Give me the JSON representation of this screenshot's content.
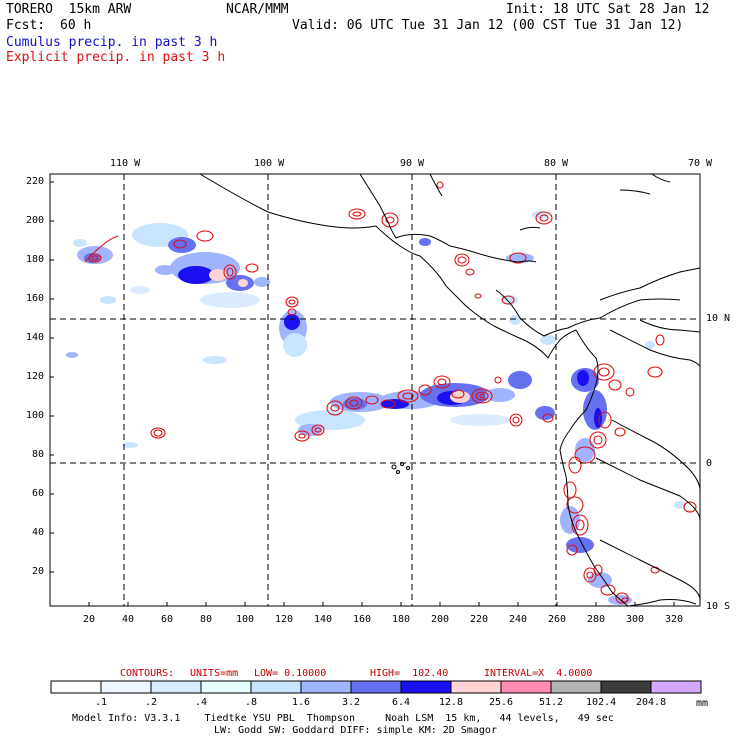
{
  "header": {
    "model": "TORERO  15km ARW",
    "org": "NCAR/MMM",
    "init": "Init: 18 UTC Sat 28 Jan 12",
    "fcst_label": "Fcst:",
    "fcst_value": "60 h",
    "valid": "Valid: 06 UTC Tue 31 Jan 12 (00 CST Tue 31 Jan 12)",
    "line_cumulus": "Cumulus precip. in past 3 h",
    "line_explicit": "Explicit precip. in past 3 h",
    "colors": {
      "cumulus": "#1010c8",
      "explicit": "#e01010"
    }
  },
  "map": {
    "lon_labels": [
      "110 W",
      "100 W",
      "90 W",
      "80 W",
      "70 W"
    ],
    "lat_labels": [
      "10 N",
      "0",
      "10 S"
    ],
    "y_ticks": [
      "220",
      "200",
      "180",
      "160",
      "140",
      "120",
      "100",
      "80",
      "60",
      "40",
      "20"
    ],
    "x_ticks": [
      "20",
      "40",
      "60",
      "80",
      "100",
      "120",
      "140",
      "160",
      "180",
      "200",
      "220",
      "240",
      "260",
      "280",
      "300",
      "320"
    ]
  },
  "contour_info": {
    "contours": "CONTOURS:",
    "units": "UNITS=mm",
    "low": "LOW= 0.10000",
    "high": "HIGH=  102.40",
    "interval": "INTERVAL=X  4.0000",
    "color": "#c00000"
  },
  "colorbar": {
    "unit": "mm",
    "labels": [
      ".1",
      ".2",
      ".4",
      ".8",
      "1.6",
      "3.2",
      "6.4",
      "12.8",
      "25.6",
      "51.2",
      "102.4",
      "204.8"
    ],
    "colors": [
      "#ffffff",
      "#eef6ff",
      "#dcecff",
      "#e6ffff",
      "#c8e4ff",
      "#a0b4ff",
      "#6670f0",
      "#1a10f0",
      "#ffd4d4",
      "#ff8cb4",
      "#b4b4b4",
      "#3c3c3c",
      "#d4a8ff"
    ]
  },
  "footer": {
    "line1": "Model Info: V3.3.1    Tiedtke YSU PBL  Thompson     Noah LSM  15 km,   44 levels,   49 sec",
    "line2": "LW: Godd SW: Goddard DIFF: simple KM: 2D Smagor"
  }
}
